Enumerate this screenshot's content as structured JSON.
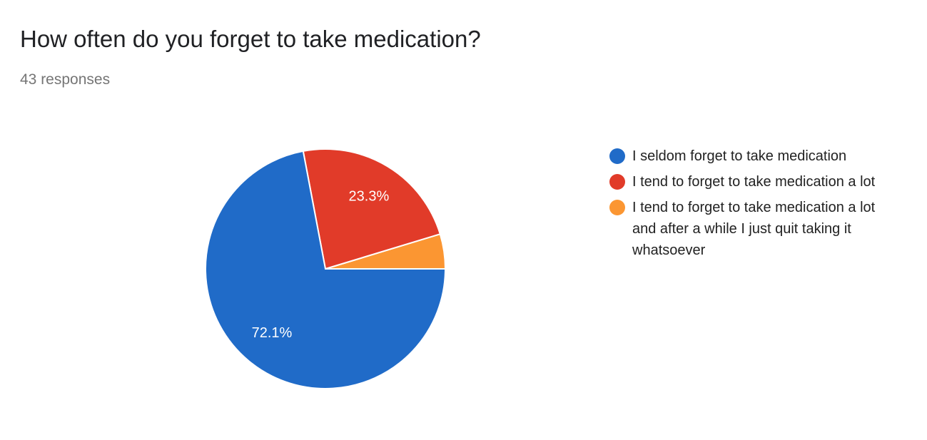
{
  "chart_data": {
    "type": "pie",
    "title": "How often do you forget to take medication?",
    "subtitle": "43 responses",
    "categories": [
      "I seldom forget to take medication",
      "I tend to forget to take medication a lot",
      "I tend to forget to take medication a lot and after a while I just quit taking it whatsoever"
    ],
    "values": [
      72.1,
      23.3,
      4.7
    ],
    "value_labels": [
      "72.1%",
      "23.3%",
      null
    ],
    "colors": [
      "#206bc8",
      "#e13b29",
      "#fb9632"
    ]
  }
}
